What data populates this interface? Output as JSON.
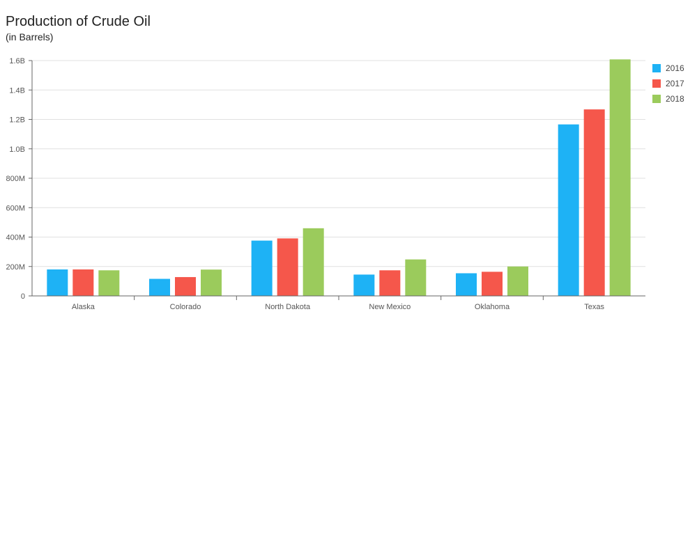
{
  "chart_data": {
    "type": "bar",
    "title": "Production of Crude Oil",
    "subtitle": "(in Barrels)",
    "xlabel": "",
    "ylabel": "",
    "categories": [
      "Alaska",
      "Colorado",
      "North Dakota",
      "New Mexico",
      "Oklahoma",
      "Texas"
    ],
    "series": [
      {
        "name": "2016",
        "color": "#1EB2F5",
        "values": [
          180000000,
          116000000,
          376000000,
          145000000,
          154000000,
          1166000000
        ]
      },
      {
        "name": "2017",
        "color": "#F5574B",
        "values": [
          180000000,
          128000000,
          391000000,
          174000000,
          164000000,
          1268000000
        ]
      },
      {
        "name": "2018",
        "color": "#9BCB5C",
        "values": [
          174000000,
          179000000,
          460000000,
          248000000,
          200000000,
          1608000000
        ]
      }
    ],
    "ylim": [
      0,
      1600000000
    ],
    "yticks": [
      0,
      200000000,
      400000000,
      600000000,
      800000000,
      1000000000,
      1200000000,
      1400000000,
      1600000000
    ],
    "ytick_labels": [
      "0",
      "200M",
      "400M",
      "600M",
      "800M",
      "1.0B",
      "1.2B",
      "1.4B",
      "1.6B"
    ],
    "grid": true,
    "legend_position": "top-right"
  }
}
